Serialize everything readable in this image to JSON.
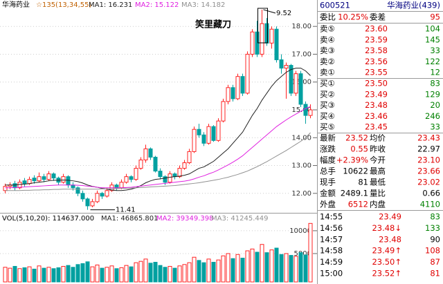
{
  "chart_data": [
    {
      "type": "candlestick",
      "title": "华海药业",
      "subtitle": "☆135(13,34,55)",
      "up_color": "#ff2020",
      "down_color": "#00a0a0",
      "ohlc": [
        [
          12.1,
          12.35,
          12.0,
          12.25
        ],
        [
          12.25,
          12.4,
          12.15,
          12.3
        ],
        [
          12.35,
          12.45,
          12.1,
          12.2
        ],
        [
          12.2,
          12.5,
          12.15,
          12.4
        ],
        [
          12.45,
          12.55,
          12.25,
          12.35
        ],
        [
          12.35,
          12.6,
          12.3,
          12.5
        ],
        [
          12.55,
          12.65,
          12.35,
          12.45
        ],
        [
          12.45,
          12.75,
          12.4,
          12.6
        ],
        [
          12.6,
          12.7,
          12.4,
          12.5
        ],
        [
          12.5,
          12.8,
          12.45,
          12.7
        ],
        [
          12.7,
          12.75,
          12.45,
          12.55
        ],
        [
          12.55,
          12.6,
          12.3,
          12.4
        ],
        [
          12.4,
          12.7,
          12.35,
          12.6
        ],
        [
          12.6,
          12.65,
          12.2,
          12.3
        ],
        [
          12.3,
          12.4,
          12.1,
          12.2
        ],
        [
          12.2,
          12.25,
          11.9,
          12.0
        ],
        [
          12.0,
          12.1,
          11.7,
          11.8
        ],
        [
          11.8,
          11.85,
          11.41,
          11.55
        ],
        [
          11.55,
          11.8,
          11.5,
          11.7
        ],
        [
          11.7,
          12.1,
          11.65,
          12.0
        ],
        [
          12.0,
          12.05,
          11.8,
          11.9
        ],
        [
          11.9,
          12.2,
          11.85,
          12.1
        ],
        [
          12.1,
          12.4,
          12.05,
          12.3
        ],
        [
          12.3,
          12.35,
          12.1,
          12.2
        ],
        [
          12.2,
          12.5,
          12.15,
          12.4
        ],
        [
          12.4,
          12.7,
          12.35,
          12.6
        ],
        [
          12.6,
          12.65,
          12.4,
          12.5
        ],
        [
          12.5,
          13.0,
          12.45,
          12.9
        ],
        [
          12.9,
          13.3,
          12.85,
          13.2
        ],
        [
          13.2,
          13.75,
          13.1,
          13.6
        ],
        [
          13.6,
          13.65,
          13.2,
          13.3
        ],
        [
          13.3,
          13.35,
          12.75,
          12.8
        ],
        [
          12.8,
          12.9,
          12.5,
          12.6
        ],
        [
          12.6,
          12.65,
          12.3,
          12.4
        ],
        [
          12.4,
          12.8,
          12.35,
          12.7
        ],
        [
          12.7,
          12.75,
          12.5,
          12.6
        ],
        [
          12.6,
          13.0,
          12.55,
          12.9
        ],
        [
          12.9,
          13.2,
          12.85,
          13.1
        ],
        [
          13.1,
          13.6,
          13.05,
          13.5
        ],
        [
          13.5,
          14.4,
          13.45,
          14.3
        ],
        [
          14.3,
          14.5,
          14.0,
          14.1
        ],
        [
          14.1,
          14.2,
          13.7,
          13.8
        ],
        [
          13.8,
          14.5,
          13.75,
          14.4
        ],
        [
          14.4,
          14.45,
          13.85,
          13.9
        ],
        [
          13.9,
          14.7,
          13.85,
          14.6
        ],
        [
          14.6,
          15.4,
          14.55,
          15.3
        ],
        [
          15.3,
          15.9,
          15.2,
          15.8
        ],
        [
          15.8,
          15.9,
          15.3,
          15.4
        ],
        [
          15.4,
          16.3,
          15.35,
          16.2
        ],
        [
          16.2,
          16.3,
          15.5,
          15.6
        ],
        [
          15.6,
          17.1,
          15.55,
          17.0
        ],
        [
          17.0,
          17.9,
          16.9,
          17.8
        ],
        [
          17.8,
          18.2,
          16.9,
          17.0
        ],
        [
          17.0,
          18.6,
          16.9,
          18.1
        ],
        [
          18.1,
          18.3,
          17.3,
          17.4
        ],
        [
          17.4,
          18.0,
          17.2,
          17.9
        ],
        [
          17.9,
          18.0,
          16.7,
          16.8
        ],
        [
          16.8,
          17.0,
          16.3,
          16.5
        ],
        [
          16.5,
          16.7,
          15.4,
          16.6
        ],
        [
          16.6,
          16.65,
          15.5,
          15.6
        ],
        [
          15.6,
          16.4,
          15.5,
          16.3
        ],
        [
          16.3,
          16.4,
          15.1,
          15.2
        ],
        [
          15.2,
          15.3,
          14.5,
          14.8
        ],
        [
          14.8,
          15.2,
          14.7,
          15.0
        ]
      ],
      "series": [
        {
          "name": "MA1: 16.231",
          "color": "#202020",
          "values": [
            12.3,
            12.3,
            12.3,
            12.32,
            12.33,
            12.35,
            12.38,
            12.4,
            12.42,
            12.45,
            12.47,
            12.47,
            12.48,
            12.47,
            12.45,
            12.42,
            12.37,
            12.3,
            12.25,
            12.22,
            12.18,
            12.15,
            12.12,
            12.1,
            12.1,
            12.12,
            12.15,
            12.2,
            12.28,
            12.38,
            12.45,
            12.5,
            12.52,
            12.55,
            12.58,
            12.6,
            12.62,
            12.65,
            12.7,
            12.8,
            12.9,
            12.95,
            13.05,
            13.15,
            13.3,
            13.45,
            13.6,
            13.8,
            14.0,
            14.2,
            14.5,
            14.8,
            15.05,
            15.35,
            15.6,
            15.85,
            16.05,
            16.2,
            16.35,
            16.45,
            16.5,
            16.5,
            16.4,
            16.23
          ]
        },
        {
          "name": "MA2: 15.122",
          "color": "#e020e0",
          "values": [
            12.2,
            12.2,
            12.21,
            12.22,
            12.23,
            12.24,
            12.25,
            12.26,
            12.27,
            12.28,
            12.29,
            12.3,
            12.3,
            12.3,
            12.3,
            12.29,
            12.28,
            12.26,
            12.24,
            12.22,
            12.2,
            12.2,
            12.2,
            12.2,
            12.2,
            12.21,
            12.22,
            12.24,
            12.26,
            12.28,
            12.3,
            12.32,
            12.34,
            12.36,
            12.38,
            12.4,
            12.42,
            12.44,
            12.47,
            12.52,
            12.58,
            12.63,
            12.7,
            12.76,
            12.84,
            12.93,
            13.02,
            13.12,
            13.23,
            13.35,
            13.5,
            13.65,
            13.8,
            13.95,
            14.1,
            14.25,
            14.4,
            14.52,
            14.64,
            14.75,
            14.85,
            14.95,
            15.05,
            15.12
          ]
        },
        {
          "name": "MA3: 14.182",
          "color": "#909090",
          "values": [
            12.1,
            12.1,
            12.1,
            12.1,
            12.11,
            12.11,
            12.12,
            12.12,
            12.13,
            12.13,
            12.14,
            12.14,
            12.15,
            12.15,
            12.15,
            12.15,
            12.15,
            12.15,
            12.15,
            12.15,
            12.16,
            12.16,
            12.17,
            12.17,
            12.18,
            12.18,
            12.19,
            12.2,
            12.21,
            12.22,
            12.23,
            12.24,
            12.25,
            12.26,
            12.27,
            12.28,
            12.3,
            12.32,
            12.34,
            12.36,
            12.38,
            12.41,
            12.44,
            12.47,
            12.5,
            12.54,
            12.58,
            12.63,
            12.68,
            12.74,
            12.8,
            12.88,
            12.96,
            13.05,
            13.14,
            13.24,
            13.34,
            13.44,
            13.54,
            13.65,
            13.76,
            13.87,
            14.0,
            14.18
          ]
        }
      ],
      "ylim": [
        11.3,
        18.7
      ],
      "yticks": [
        {
          "value": 18,
          "label": "18.00"
        },
        {
          "value": 17,
          "label": "17.00"
        },
        {
          "value": 16,
          "label": "16.00"
        },
        {
          "value": 15,
          "label": "15.00"
        },
        {
          "value": 14,
          "label": "14.00"
        },
        {
          "value": 13,
          "label": "13.00"
        },
        {
          "value": 12,
          "label": "12.00"
        }
      ],
      "grid": true,
      "annotations": [
        "笑里藏刀",
        "9.52",
        "11.41"
      ]
    },
    {
      "type": "bar",
      "title": "VOL(5,10,20): 114637.000",
      "legend": [
        {
          "name": "MA1: 46865.801",
          "color": "#202020"
        },
        {
          "name": "MA2: 39349.398",
          "color": "#e020e0"
        },
        {
          "name": "MA3: 41245.449",
          "color": "#909090"
        }
      ],
      "values": [
        2000,
        1800,
        2200,
        1700,
        1900,
        2100,
        1600,
        2300,
        1800,
        2000,
        1700,
        1900,
        2200,
        2400,
        2000,
        2600,
        2800,
        3200,
        2100,
        2500,
        1800,
        2000,
        2300,
        1700,
        1900,
        2400,
        2100,
        3000,
        3300,
        3800,
        2900,
        3100,
        2400,
        2000,
        2200,
        1800,
        2300,
        2600,
        3000,
        4200,
        3500,
        3000,
        3800,
        3100,
        3600,
        4500,
        5000,
        3900,
        4800,
        4000,
        5600,
        6000,
        5300,
        7000,
        5200,
        5800,
        6200,
        4800,
        5000,
        4600,
        4400,
        5200,
        4700,
        11600
      ],
      "ylim": [
        0,
        11800
      ],
      "yticks": [
        10000,
        5000
      ]
    }
  ],
  "quote": {
    "code": "600521",
    "name": "华海药业(439)",
    "ratio": [
      "委比",
      "10.25%",
      "委差",
      "95"
    ],
    "book": [
      [
        "卖⑤",
        "23.60",
        "104"
      ],
      [
        "卖④",
        "23.59",
        "145"
      ],
      [
        "卖③",
        "23.58",
        "33"
      ],
      [
        "卖②",
        "23.56",
        "122"
      ],
      [
        "卖①",
        "23.55",
        "12"
      ],
      [
        "买①",
        "23.50",
        "83"
      ],
      [
        "买②",
        "23.49",
        "129"
      ],
      [
        "买③",
        "23.48",
        "20"
      ],
      [
        "买④",
        "23.46",
        "246"
      ],
      [
        "买⑤",
        "23.45",
        "33"
      ]
    ],
    "stats": [
      [
        "最新",
        "23.52",
        "均价",
        "23.43"
      ],
      [
        "涨跌",
        "0.55",
        "昨收",
        "22.97"
      ],
      [
        "幅度",
        "+2.39%",
        "今开",
        "23.10"
      ],
      [
        "总手",
        "10622",
        "最高",
        "23.66"
      ],
      [
        "现手",
        "81",
        "最低",
        "23.02"
      ],
      [
        "金额",
        "2489.1",
        "量比",
        "0.66"
      ],
      [
        "外盘",
        "6512",
        "内盘",
        "4110"
      ]
    ],
    "ticks": [
      [
        "14:55",
        "23.49",
        "83"
      ],
      [
        "14:56",
        "23.48↓",
        "133"
      ],
      [
        "14:57",
        "23.48",
        "90"
      ],
      [
        "14:58",
        "23.49↑",
        "108"
      ],
      [
        "14:59",
        "23.50↑",
        "87"
      ],
      [
        "15:00",
        "23.52↑",
        "81"
      ]
    ]
  }
}
